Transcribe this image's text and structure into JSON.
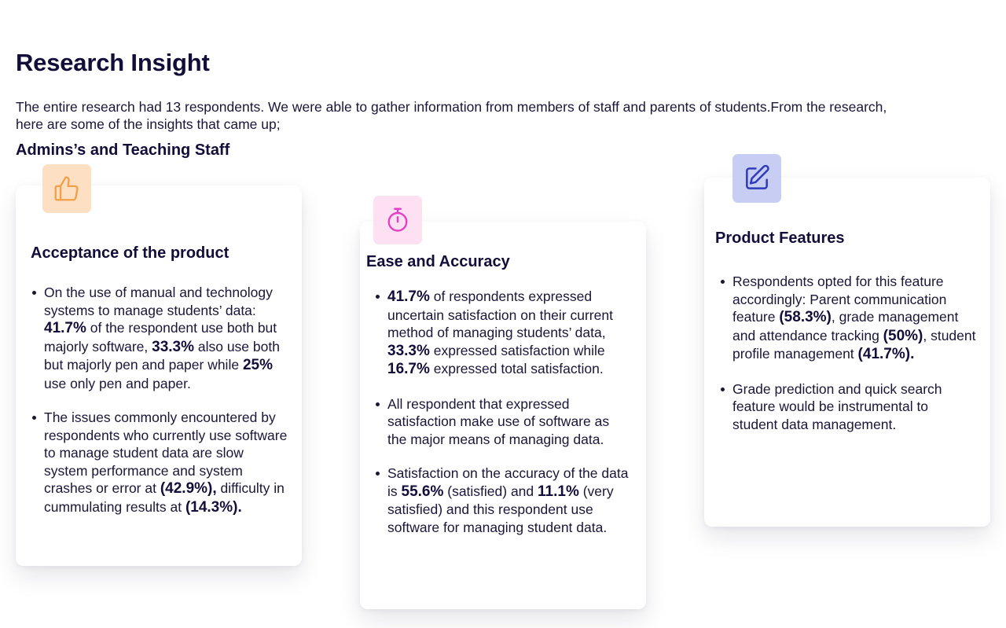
{
  "title": "Research Insight",
  "intro": "The entire research had 13 respondents. We were able to gather information from members of staff and parents of students.From the research, here are some of the insights that came up;",
  "subtitle": "Admins’s and Teaching Staff",
  "colors": {
    "icon_bg_orange": "#fde0c4",
    "icon_orange": "#f3a04b",
    "icon_bg_pink": "#fde1f3",
    "icon_pink": "#e43fc7",
    "icon_bg_blue": "#c8cdf3",
    "icon_blue": "#2f3bb8",
    "text_dark": "#130d3a"
  },
  "cards": [
    {
      "icon": "thumbs-up-icon",
      "title": "Acceptance of the product",
      "bullets": [
        [
          {
            "t": "On the use of manual and technology systems to manage students’ data: "
          },
          {
            "t": "41.7%",
            "b": true
          },
          {
            "t": " of the respondent use both but majorly software, "
          },
          {
            "t": "33.3%",
            "b": true
          },
          {
            "t": " also use both but majorly pen and paper while "
          },
          {
            "t": "25%",
            "b": true
          },
          {
            "t": " use only pen and paper."
          }
        ],
        [
          {
            "t": "The issues commonly encountered by respondents who currently use software to manage student data are slow system performance and system crashes or error at "
          },
          {
            "t": "(42.9%),",
            "b": true
          },
          {
            "t": " difficulty in cummulating results at "
          },
          {
            "t": "(14.3%).",
            "b": true
          }
        ]
      ]
    },
    {
      "icon": "stopwatch-icon",
      "title": "Ease and Accuracy",
      "bullets": [
        [
          {
            "t": "41.7%",
            "b": true
          },
          {
            "t": " of respondents expressed uncertain satisfaction on their current method of managing students’ data, "
          },
          {
            "t": "33.3%",
            "b": true
          },
          {
            "t": " expressed satisfaction while "
          },
          {
            "t": "16.7%",
            "b": true
          },
          {
            "t": " expressed total satisfaction."
          }
        ],
        [
          {
            "t": "All respondent that expressed satisfaction make use of software as the major means of managing data."
          }
        ],
        [
          {
            "t": "Satisfaction on the accuracy of the data is "
          },
          {
            "t": "55.6%",
            "b": true
          },
          {
            "t": " (satisfied) and "
          },
          {
            "t": "11.1%",
            "b": true
          },
          {
            "t": " (very satisfied) and this respondent use software for managing student data."
          }
        ]
      ]
    },
    {
      "icon": "edit-icon",
      "title": "Product Features",
      "bullets": [
        [
          {
            "t": "Respondents opted for this feature accordingly: Parent communication feature "
          },
          {
            "t": "(58.3%)",
            "b": true
          },
          {
            "t": ", grade management and attendance tracking "
          },
          {
            "t": "(50%)",
            "b": true
          },
          {
            "t": ", student profile management "
          },
          {
            "t": "(41.7%).",
            "b": true
          }
        ],
        [
          {
            "t": "Grade prediction and quick search feature would be instrumental to student data management."
          }
        ]
      ]
    }
  ]
}
